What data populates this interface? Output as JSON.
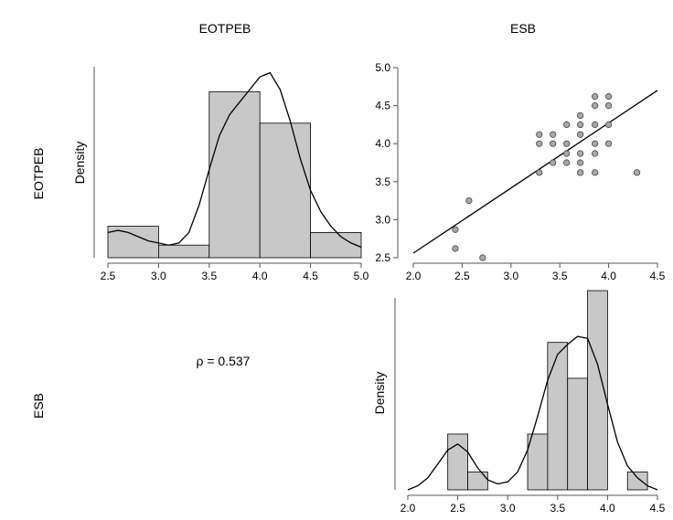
{
  "chart_data": [
    {
      "type": "bar",
      "panel": "EOTPEB histogram with density",
      "ylabel": "Density",
      "bins": [
        {
          "start": 2.5,
          "end": 3.0,
          "value": 0.15
        },
        {
          "start": 3.0,
          "end": 3.5,
          "value": 0.06
        },
        {
          "start": 3.5,
          "end": 4.0,
          "value": 0.79
        },
        {
          "start": 4.0,
          "end": 4.5,
          "value": 0.64
        },
        {
          "start": 4.5,
          "end": 5.0,
          "value": 0.12
        }
      ],
      "density_curve": {
        "x": [
          2.5,
          2.6,
          2.7,
          2.8,
          2.9,
          3.0,
          3.1,
          3.2,
          3.3,
          3.4,
          3.5,
          3.6,
          3.7,
          3.8,
          3.9,
          4.0,
          4.1,
          4.2,
          4.3,
          4.4,
          4.5,
          4.6,
          4.7,
          4.8,
          4.9,
          5.0
        ],
        "y": [
          0.12,
          0.13,
          0.12,
          0.1,
          0.08,
          0.07,
          0.06,
          0.07,
          0.12,
          0.25,
          0.42,
          0.58,
          0.68,
          0.74,
          0.8,
          0.86,
          0.88,
          0.8,
          0.65,
          0.47,
          0.32,
          0.22,
          0.15,
          0.1,
          0.07,
          0.05
        ]
      },
      "xticks": [
        "2.5",
        "3.0",
        "3.5",
        "4.0",
        "4.5",
        "5.0"
      ],
      "xlim": [
        2.5,
        5.0
      ],
      "ylim": [
        0,
        0.9
      ]
    },
    {
      "type": "scatter",
      "panel": "ESB vs EOTPEB scatter",
      "points": [
        {
          "x": 2.43,
          "y": 2.87
        },
        {
          "x": 2.43,
          "y": 2.62
        },
        {
          "x": 2.57,
          "y": 3.25
        },
        {
          "x": 2.71,
          "y": 2.5
        },
        {
          "x": 3.29,
          "y": 4.12
        },
        {
          "x": 3.29,
          "y": 4.0
        },
        {
          "x": 3.29,
          "y": 3.62
        },
        {
          "x": 3.43,
          "y": 4.12
        },
        {
          "x": 3.43,
          "y": 4.0
        },
        {
          "x": 3.43,
          "y": 3.75
        },
        {
          "x": 3.57,
          "y": 4.25
        },
        {
          "x": 3.57,
          "y": 4.0
        },
        {
          "x": 3.57,
          "y": 3.87
        },
        {
          "x": 3.57,
          "y": 3.75
        },
        {
          "x": 3.71,
          "y": 4.37
        },
        {
          "x": 3.71,
          "y": 4.25
        },
        {
          "x": 3.71,
          "y": 4.12
        },
        {
          "x": 3.71,
          "y": 3.87
        },
        {
          "x": 3.71,
          "y": 3.75
        },
        {
          "x": 3.71,
          "y": 3.62
        },
        {
          "x": 3.86,
          "y": 4.62
        },
        {
          "x": 3.86,
          "y": 4.5
        },
        {
          "x": 3.86,
          "y": 4.25
        },
        {
          "x": 3.86,
          "y": 4.0
        },
        {
          "x": 3.86,
          "y": 3.87
        },
        {
          "x": 3.86,
          "y": 3.62
        },
        {
          "x": 4.0,
          "y": 4.62
        },
        {
          "x": 4.0,
          "y": 4.5
        },
        {
          "x": 4.0,
          "y": 4.25
        },
        {
          "x": 4.0,
          "y": 4.0
        },
        {
          "x": 4.29,
          "y": 3.62
        }
      ],
      "regression_line": {
        "x": [
          2.0,
          4.5
        ],
        "y": [
          2.56,
          4.7
        ]
      },
      "xticks": [
        "2.0",
        "2.5",
        "3.0",
        "3.5",
        "4.0",
        "4.5"
      ],
      "yticks": [
        "2.5",
        "3.0",
        "3.5",
        "4.0",
        "4.5",
        "5.0"
      ],
      "xlim": [
        2.0,
        4.5
      ],
      "ylim": [
        2.5,
        5.0
      ]
    },
    {
      "type": "bar",
      "panel": "ESB histogram with density",
      "ylabel": "Density",
      "bins": [
        {
          "start": 2.4,
          "end": 2.6,
          "value": 0.28
        },
        {
          "start": 2.6,
          "end": 2.8,
          "value": 0.09
        },
        {
          "start": 2.8,
          "end": 3.0,
          "value": 0.0
        },
        {
          "start": 3.0,
          "end": 3.2,
          "value": 0.0
        },
        {
          "start": 3.2,
          "end": 3.4,
          "value": 0.28
        },
        {
          "start": 3.4,
          "end": 3.6,
          "value": 0.74
        },
        {
          "start": 3.6,
          "end": 3.8,
          "value": 0.56
        },
        {
          "start": 3.8,
          "end": 4.0,
          "value": 1.0
        },
        {
          "start": 4.0,
          "end": 4.2,
          "value": 0.0
        },
        {
          "start": 4.2,
          "end": 4.4,
          "value": 0.09
        }
      ],
      "density_curve": {
        "x": [
          2.0,
          2.1,
          2.2,
          2.3,
          2.4,
          2.5,
          2.6,
          2.7,
          2.8,
          2.9,
          3.0,
          3.1,
          3.2,
          3.3,
          3.4,
          3.5,
          3.6,
          3.7,
          3.8,
          3.9,
          4.0,
          4.1,
          4.2,
          4.3,
          4.4,
          4.5
        ],
        "y": [
          0.0,
          0.02,
          0.06,
          0.13,
          0.2,
          0.23,
          0.19,
          0.11,
          0.05,
          0.03,
          0.04,
          0.09,
          0.2,
          0.37,
          0.55,
          0.68,
          0.73,
          0.77,
          0.76,
          0.63,
          0.43,
          0.24,
          0.12,
          0.06,
          0.02,
          0.0
        ]
      },
      "xticks": [
        "2.0",
        "2.5",
        "3.0",
        "3.5",
        "4.0",
        "4.5"
      ],
      "xlim": [
        2.0,
        4.5
      ],
      "ylim": [
        0,
        1.0
      ]
    }
  ],
  "labels": {
    "col1": "EOTPEB",
    "col2": "ESB",
    "row1": "EOTPEB",
    "row2": "ESB",
    "ylabel_top": "Density",
    "ylabel_bottom": "Density",
    "correlation": "ρ = 0.537"
  },
  "colors": {
    "bar_fill": "#c8c8c8",
    "point_fill": "#a8a8a8",
    "stroke": "#000000",
    "axis": "#555555"
  }
}
